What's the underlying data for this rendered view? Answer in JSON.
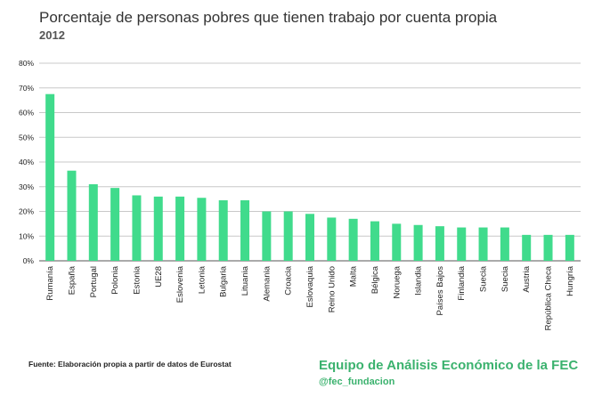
{
  "header": {
    "title": "Porcentaje de personas pobres que tienen trabajo por cuenta propia",
    "subtitle": "2012"
  },
  "footer": {
    "source": "Fuente: Elaboración propia a partir de datos de Eurostat",
    "brand": "Equipo de Análisis Económico de la FEC",
    "handle": "@fec_fundacion"
  },
  "colors": {
    "bar": "#40DB8C",
    "grid": "#C8C8C8",
    "axis": "#555555",
    "brand": "#3BB26E",
    "handle": "#3BB26E"
  },
  "chart_data": {
    "type": "bar",
    "title": "Porcentaje de personas pobres que tienen trabajo por cuenta propia",
    "subtitle": "2012",
    "xlabel": "",
    "ylabel": "",
    "categories": [
      "Rumanía",
      "España",
      "Portugal",
      "Polonia",
      "Estonia",
      "UE28",
      "Eslovenia",
      "Letonia",
      "Bulgaria",
      "Lituania",
      "Alemania",
      "Croacia",
      "Eslovaquia",
      "Reino Unido",
      "Malta",
      "Bélgica",
      "Noruega",
      "Islandia",
      "Países Bajos",
      "Finlandia",
      "Suecia",
      "Suecia",
      "Austria",
      "República Checa",
      "Hungría"
    ],
    "values": [
      67.5,
      36.5,
      31,
      29.5,
      26.5,
      26,
      26,
      25.5,
      24.5,
      24.5,
      20,
      20,
      19,
      17.5,
      17,
      16,
      15,
      14.5,
      14,
      13.5,
      13.5,
      13.5,
      10.5,
      10.5,
      10.5
    ],
    "yticks": [
      "0%",
      "10%",
      "20%",
      "30%",
      "40%",
      "50%",
      "60%",
      "70%",
      "80%"
    ],
    "ylim": [
      0,
      80
    ],
    "grid": true,
    "legend": "none"
  }
}
